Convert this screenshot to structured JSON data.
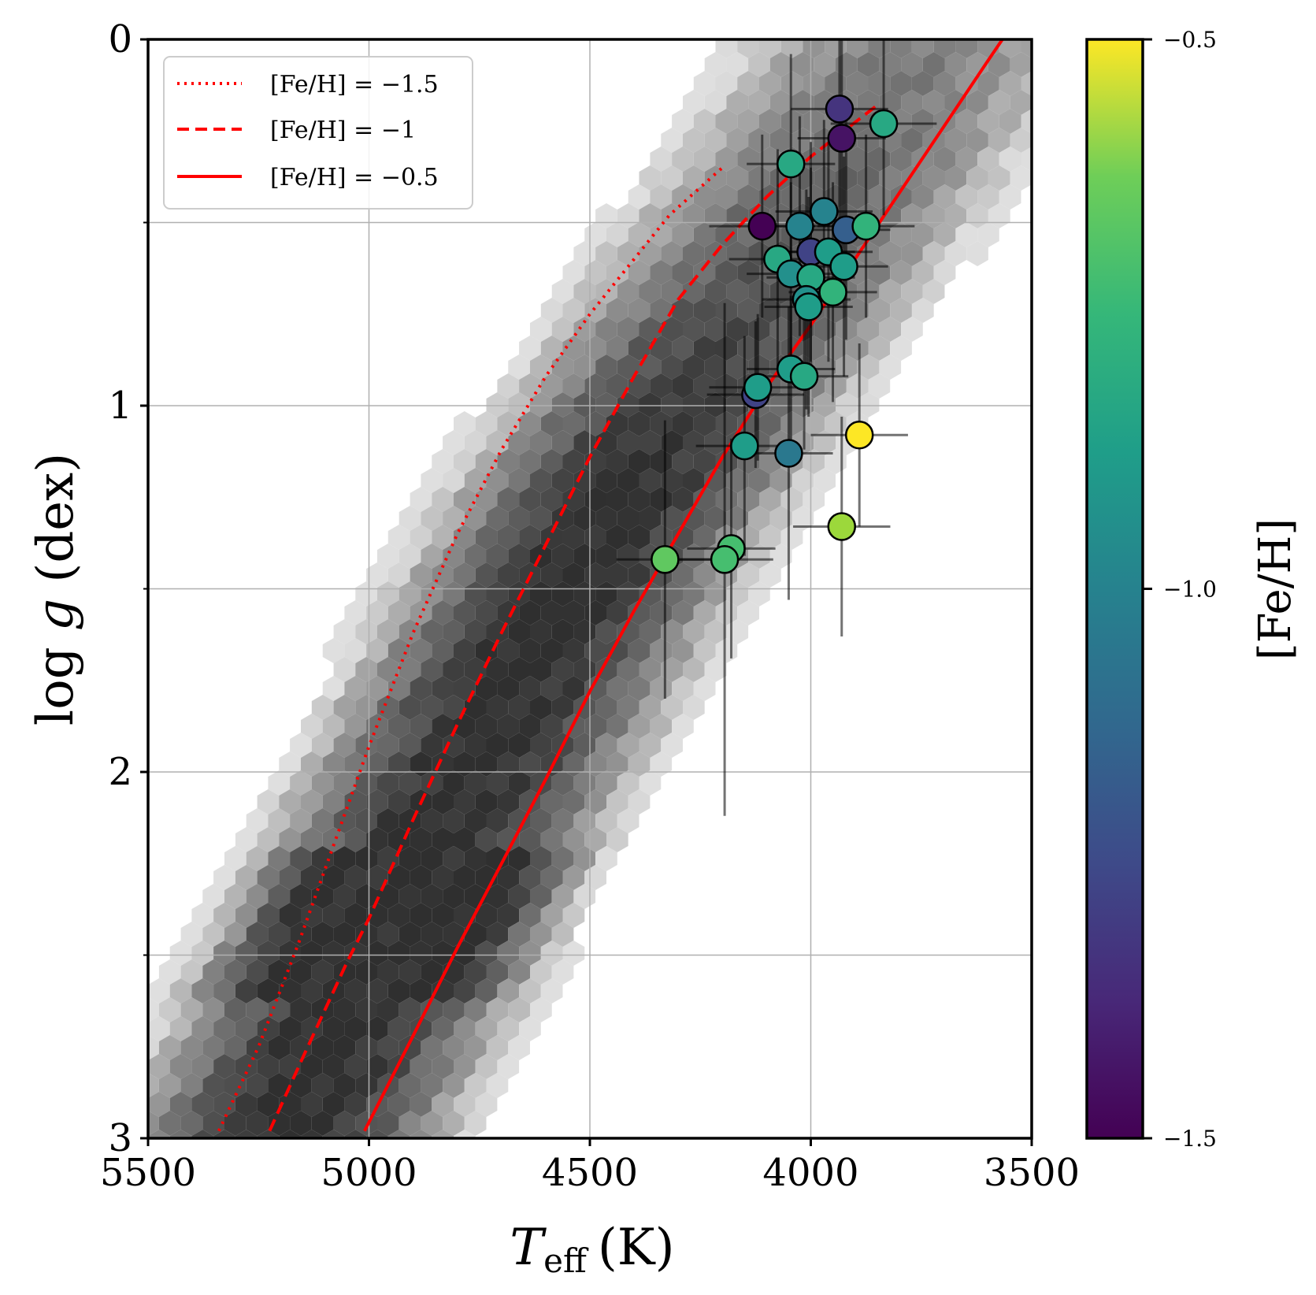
{
  "chart_data": {
    "type": "scatter",
    "xlabel_main": "T",
    "xlabel_sub": "eff",
    "xlabel_unit": "(K)",
    "ylabel_pre": "log ",
    "ylabel_var": "g",
    "ylabel_unit": " (dex)",
    "xlim": [
      5500,
      3500
    ],
    "ylim": [
      3,
      0
    ],
    "x_ticks": [
      5500,
      5000,
      4500,
      4000,
      3500
    ],
    "y_ticks": [
      0,
      1,
      2,
      3
    ],
    "x_tick_labels": [
      "5500",
      "5000",
      "4500",
      "4000",
      "3500"
    ],
    "y_tick_labels": [
      "0",
      "1",
      "2",
      "3"
    ],
    "grid": true,
    "colorbar": {
      "label": "[Fe/H]",
      "range": [
        -1.5,
        -0.5
      ],
      "ticks": [
        -1.5,
        -1.0,
        -0.5
      ],
      "tick_labels": [
        "−1.5",
        "−1.0",
        "−0.5"
      ],
      "colormap": "viridis"
    },
    "legend_position": "top-left",
    "line_color": "#ff0000",
    "isochrones": [
      {
        "name": "[Fe/H] = −1.5",
        "style": "dotted",
        "points": [
          [
            5340,
            2.98
          ],
          [
            5250,
            2.75
          ],
          [
            5160,
            2.47
          ],
          [
            5080,
            2.2
          ],
          [
            5000,
            1.93
          ],
          [
            4900,
            1.62
          ],
          [
            4800,
            1.35
          ],
          [
            4700,
            1.12
          ],
          [
            4600,
            0.92
          ],
          [
            4500,
            0.75
          ],
          [
            4400,
            0.6
          ],
          [
            4320,
            0.48
          ],
          [
            4200,
            0.35
          ]
        ]
      },
      {
        "name": "[Fe/H] = −1",
        "style": "dashed",
        "points": [
          [
            5225,
            2.98
          ],
          [
            5150,
            2.78
          ],
          [
            5050,
            2.52
          ],
          [
            5000,
            2.4
          ],
          [
            4900,
            2.13
          ],
          [
            4800,
            1.87
          ],
          [
            4700,
            1.62
          ],
          [
            4600,
            1.38
          ],
          [
            4500,
            1.14
          ],
          [
            4400,
            0.92
          ],
          [
            4300,
            0.71
          ],
          [
            4200,
            0.56
          ],
          [
            4100,
            0.43
          ],
          [
            4000,
            0.32
          ],
          [
            3850,
            0.18
          ]
        ]
      },
      {
        "name": "[Fe/H] = −0.5",
        "style": "solid",
        "points": [
          [
            5010,
            2.98
          ],
          [
            4900,
            2.72
          ],
          [
            4800,
            2.48
          ],
          [
            4700,
            2.25
          ],
          [
            4600,
            2.02
          ],
          [
            4500,
            1.78
          ],
          [
            4400,
            1.56
          ],
          [
            4300,
            1.35
          ],
          [
            4200,
            1.14
          ],
          [
            4100,
            0.95
          ],
          [
            4000,
            0.78
          ],
          [
            3900,
            0.6
          ],
          [
            3800,
            0.42
          ],
          [
            3700,
            0.24
          ],
          [
            3600,
            0.06
          ],
          [
            3510,
            -0.1
          ]
        ]
      }
    ],
    "stars": [
      {
        "teff": 3935,
        "logg": 0.19,
        "feh": -1.35,
        "xerr": 110,
        "yerr": 0.3
      },
      {
        "teff": 3930,
        "logg": 0.27,
        "feh": -1.45,
        "xerr": 100,
        "yerr": 0.3
      },
      {
        "teff": 3835,
        "logg": 0.23,
        "feh": -0.9,
        "xerr": 120,
        "yerr": 0.25
      },
      {
        "teff": 4045,
        "logg": 0.34,
        "feh": -0.9,
        "xerr": 100,
        "yerr": 0.3
      },
      {
        "teff": 3970,
        "logg": 0.47,
        "feh": -1.05,
        "xerr": 110,
        "yerr": 0.25
      },
      {
        "teff": 4110,
        "logg": 0.51,
        "feh": -1.5,
        "xerr": 120,
        "yerr": 0.25
      },
      {
        "teff": 4025,
        "logg": 0.51,
        "feh": -1.05,
        "xerr": 100,
        "yerr": 0.3
      },
      {
        "teff": 3920,
        "logg": 0.52,
        "feh": -1.2,
        "xerr": 100,
        "yerr": 0.3
      },
      {
        "teff": 3875,
        "logg": 0.51,
        "feh": -0.85,
        "xerr": 110,
        "yerr": 0.25
      },
      {
        "teff": 4000,
        "logg": 0.58,
        "feh": -1.3,
        "xerr": 100,
        "yerr": 0.3
      },
      {
        "teff": 3960,
        "logg": 0.58,
        "feh": -0.95,
        "xerr": 100,
        "yerr": 0.3
      },
      {
        "teff": 4075,
        "logg": 0.6,
        "feh": -0.9,
        "xerr": 110,
        "yerr": 0.3
      },
      {
        "teff": 3925,
        "logg": 0.62,
        "feh": -0.95,
        "xerr": 100,
        "yerr": 0.3
      },
      {
        "teff": 4045,
        "logg": 0.64,
        "feh": -1.0,
        "xerr": 100,
        "yerr": 0.25
      },
      {
        "teff": 4000,
        "logg": 0.65,
        "feh": -0.9,
        "xerr": 100,
        "yerr": 0.3
      },
      {
        "teff": 3950,
        "logg": 0.69,
        "feh": -0.85,
        "xerr": 100,
        "yerr": 0.3
      },
      {
        "teff": 4010,
        "logg": 0.71,
        "feh": -1.0,
        "xerr": 100,
        "yerr": 0.3
      },
      {
        "teff": 4005,
        "logg": 0.73,
        "feh": -0.95,
        "xerr": 100,
        "yerr": 0.3
      },
      {
        "teff": 4125,
        "logg": 0.97,
        "feh": -1.3,
        "xerr": 110,
        "yerr": 0.2
      },
      {
        "teff": 4120,
        "logg": 0.95,
        "feh": -0.95,
        "xerr": 110,
        "yerr": 0.2
      },
      {
        "teff": 4045,
        "logg": 0.9,
        "feh": -0.95,
        "xerr": 100,
        "yerr": 0.2
      },
      {
        "teff": 4015,
        "logg": 0.92,
        "feh": -0.9,
        "xerr": 100,
        "yerr": 0.2
      },
      {
        "teff": 3890,
        "logg": 1.08,
        "feh": -0.5,
        "xerr": 110,
        "yerr": 0.25
      },
      {
        "teff": 4150,
        "logg": 1.11,
        "feh": -0.95,
        "xerr": 110,
        "yerr": 0.3
      },
      {
        "teff": 4050,
        "logg": 1.13,
        "feh": -1.1,
        "xerr": 100,
        "yerr": 0.4
      },
      {
        "teff": 3930,
        "logg": 1.33,
        "feh": -0.65,
        "xerr": 110,
        "yerr": 0.3
      },
      {
        "teff": 4180,
        "logg": 1.39,
        "feh": -0.8,
        "xerr": 100,
        "yerr": 0.3
      },
      {
        "teff": 4330,
        "logg": 1.42,
        "feh": -0.75,
        "xerr": 110,
        "yerr": 0.38
      },
      {
        "teff": 4195,
        "logg": 1.42,
        "feh": -0.8,
        "xerr": 110,
        "yerr": 0.7
      }
    ]
  }
}
